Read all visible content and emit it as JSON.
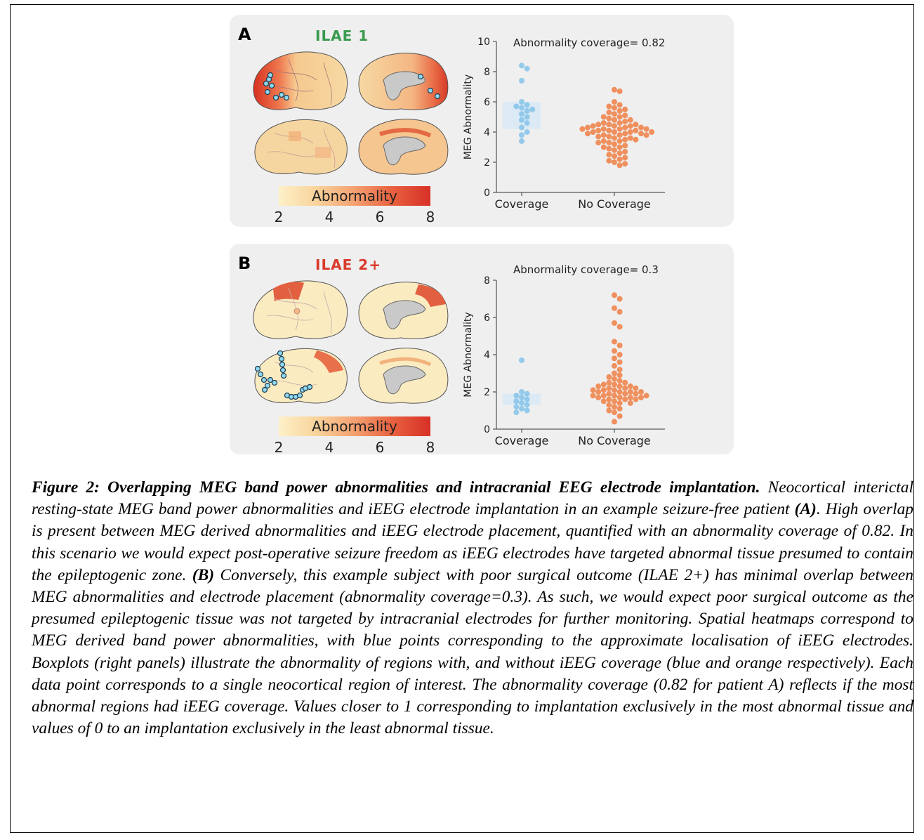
{
  "figure": {
    "caption_title": "Figure 2: Overlapping MEG band power abnormalities and intracranial EEG electrode implantation.",
    "caption_part1": "Neocortical interictal resting-state MEG band power abnormalities and iEEG electrode implantation in an example seizure-free patient",
    "caption_bold_a": "(A)",
    "caption_part2": ". High overlap is present between MEG derived abnormalities and iEEG electrode placement, quantified with an abnormality coverage of 0.82. In this scenario we would expect post-operative seizure freedom as iEEG electrodes have targeted abnormal tissue presumed to contain the epileptogenic zone.",
    "caption_bold_b": "(B)",
    "caption_part3": "Conversely, this example subject with poor surgical outcome (ILAE 2+) has minimal overlap between MEG abnormalities and electrode placement (abnormality coverage=0.3). As such, we would expect poor surgical outcome as the presumed epileptogenic tissue was not targeted by intracranial electrodes for further monitoring. Spatial heatmaps correspond to MEG derived band power abnormalities, with blue points corresponding to the approximate localisation of iEEG electrodes. Boxplots (right panels) illustrate the abnormality of regions with, and without iEEG coverage (blue and orange respectively). Each data point corresponds to a single neocortical region of interest. The abnormality coverage (0.82 for patient A) reflects if the most abnormal regions had iEEG coverage. Values closer to 1 corresponding to implantation exclusively in the most abnormal tissue and values of 0 to an implantation exclusively in the least abnormal tissue."
  },
  "panelA": {
    "letter": "A",
    "tag": "ILAE 1",
    "tag_color": "#3a9a4e",
    "colorbar_label": "Abnormality",
    "colorbar_ticks": [
      "2",
      "4",
      "6",
      "8"
    ]
  },
  "panelB": {
    "letter": "B",
    "tag": "ILAE 2+",
    "tag_color": "#d93a2b",
    "colorbar_label": "Abnormality",
    "colorbar_ticks": [
      "2",
      "4",
      "6",
      "8"
    ]
  },
  "colors": {
    "coverage": "#8ec7ea",
    "no_coverage": "#ee8a55",
    "box": "#dbeaf5"
  },
  "chart_data": [
    {
      "type": "scatter",
      "title": "Abnormality coverage= 0.82",
      "ylabel": "MEG Abnormality",
      "xlabel": "",
      "categories": [
        "Coverage",
        "No Coverage"
      ],
      "ylim": [
        0,
        10
      ],
      "yticks": [
        0,
        2,
        4,
        6,
        8,
        10
      ],
      "box_coverage": [
        4.2,
        6.0
      ],
      "series": [
        {
          "name": "Coverage",
          "values": [
            8.4,
            8.2,
            7.4,
            6.0,
            5.8,
            5.7,
            5.6,
            5.5,
            5.4,
            5.2,
            5.0,
            4.8,
            4.6,
            4.3,
            4.0,
            3.8,
            3.4
          ]
        },
        {
          "name": "No Coverage",
          "values": [
            6.8,
            6.7,
            6.0,
            5.8,
            5.7,
            5.6,
            5.5,
            5.4,
            5.3,
            5.2,
            5.1,
            5.0,
            5.0,
            4.9,
            4.8,
            4.8,
            4.7,
            4.6,
            4.6,
            4.5,
            4.5,
            4.5,
            4.4,
            4.4,
            4.4,
            4.3,
            4.3,
            4.3,
            4.2,
            4.2,
            4.2,
            4.2,
            4.1,
            4.1,
            4.1,
            4.0,
            4.0,
            4.0,
            4.0,
            3.9,
            3.9,
            3.9,
            3.8,
            3.8,
            3.8,
            3.7,
            3.7,
            3.6,
            3.6,
            3.5,
            3.5,
            3.4,
            3.4,
            3.3,
            3.3,
            3.2,
            3.1,
            3.0,
            3.0,
            2.9,
            2.8,
            2.7,
            2.6,
            2.5,
            2.4,
            2.3,
            2.2,
            2.1,
            2.0,
            1.9,
            1.8
          ]
        }
      ]
    },
    {
      "type": "scatter",
      "title": "Abnormality coverage= 0.3",
      "ylabel": "MEG Abnormality",
      "xlabel": "",
      "categories": [
        "Coverage",
        "No Coverage"
      ],
      "ylim": [
        0,
        8
      ],
      "yticks": [
        0,
        2,
        4,
        6,
        8
      ],
      "box_coverage": [
        1.3,
        1.9
      ],
      "series": [
        {
          "name": "Coverage",
          "values": [
            3.7,
            2.0,
            1.9,
            1.8,
            1.7,
            1.6,
            1.5,
            1.4,
            1.3,
            1.2,
            1.1,
            1.0,
            0.9
          ]
        },
        {
          "name": "No Coverage",
          "values": [
            7.2,
            7.0,
            6.5,
            6.3,
            5.7,
            5.5,
            4.7,
            4.5,
            4.2,
            4.0,
            3.8,
            3.6,
            3.4,
            3.2,
            3.0,
            2.9,
            2.8,
            2.7,
            2.6,
            2.5,
            2.5,
            2.4,
            2.4,
            2.3,
            2.3,
            2.3,
            2.2,
            2.2,
            2.2,
            2.1,
            2.1,
            2.1,
            2.0,
            2.0,
            2.0,
            2.0,
            1.9,
            1.9,
            1.9,
            1.8,
            1.8,
            1.8,
            1.8,
            1.7,
            1.7,
            1.7,
            1.7,
            1.6,
            1.6,
            1.6,
            1.5,
            1.5,
            1.4,
            1.4,
            1.3,
            1.2,
            1.1,
            1.0,
            0.9,
            0.7,
            0.4
          ]
        }
      ]
    }
  ]
}
